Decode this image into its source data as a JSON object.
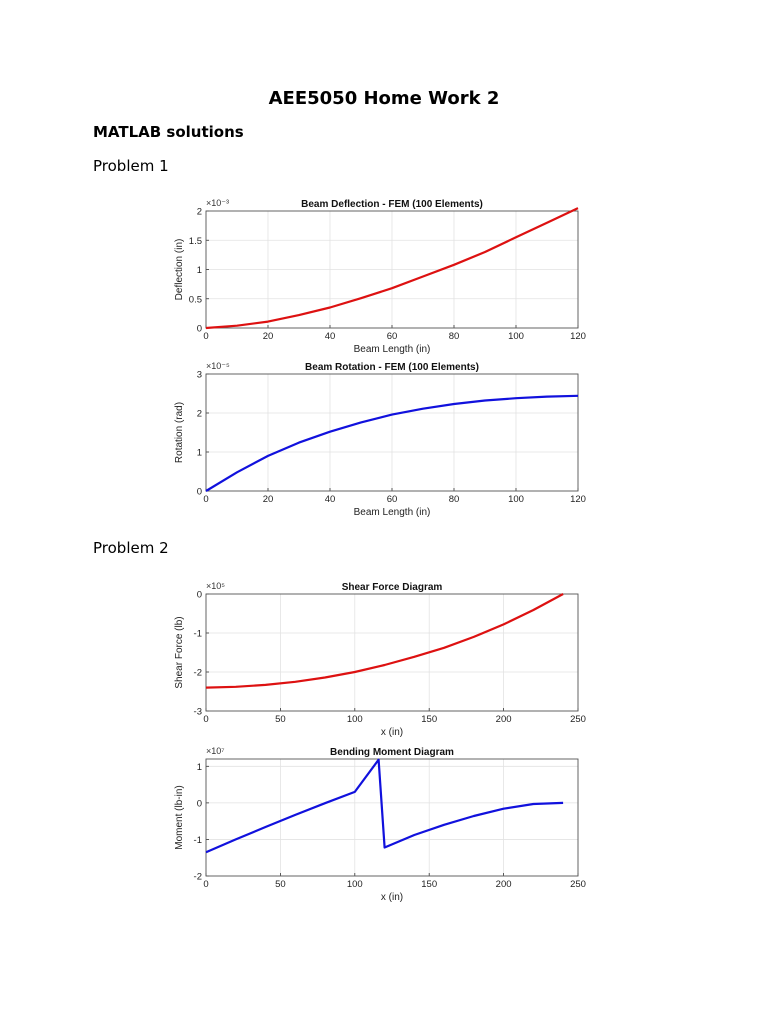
{
  "document": {
    "title": "AEE5050 Home Work 2",
    "subtitle": "MATLAB solutions",
    "sections": [
      "Problem 1",
      "Problem 2"
    ]
  },
  "chart_data": [
    {
      "type": "line",
      "title": "Beam Deflection - FEM (100 Elements)",
      "xlabel": "Beam Length (in)",
      "ylabel": "Deflection (in)",
      "exponent": "×10⁻³",
      "xlim": [
        0,
        120
      ],
      "ylim": [
        0,
        2
      ],
      "xticks": [
        "0",
        "20",
        "40",
        "60",
        "80",
        "100",
        "120"
      ],
      "yticks": [
        "0",
        "0.5",
        "1",
        "1.5",
        "2"
      ],
      "xtick_values": [
        0,
        20,
        40,
        60,
        80,
        100,
        120
      ],
      "ytick_values": [
        0,
        0.5,
        1,
        1.5,
        2
      ],
      "grid": true,
      "color": "#dd1111",
      "series": [
        {
          "x": [
            0,
            10,
            20,
            30,
            40,
            50,
            60,
            70,
            80,
            90,
            100,
            110,
            120
          ],
          "y": [
            0,
            0.04,
            0.11,
            0.22,
            0.35,
            0.51,
            0.68,
            0.88,
            1.08,
            1.3,
            1.55,
            1.8,
            2.05
          ]
        }
      ]
    },
    {
      "type": "line",
      "title": "Beam Rotation - FEM (100 Elements)",
      "xlabel": "Beam Length (in)",
      "ylabel": "Rotation (rad)",
      "exponent": "×10⁻⁵",
      "xlim": [
        0,
        120
      ],
      "ylim": [
        0,
        3
      ],
      "xticks": [
        "0",
        "20",
        "40",
        "60",
        "80",
        "100",
        "120"
      ],
      "yticks": [
        "0",
        "1",
        "2",
        "3"
      ],
      "xtick_values": [
        0,
        20,
        40,
        60,
        80,
        100,
        120
      ],
      "ytick_values": [
        0,
        1,
        2,
        3
      ],
      "grid": true,
      "color": "#1111dd",
      "series": [
        {
          "x": [
            0,
            10,
            20,
            30,
            40,
            50,
            60,
            70,
            80,
            90,
            100,
            110,
            120
          ],
          "y": [
            0,
            0.48,
            0.9,
            1.24,
            1.52,
            1.76,
            1.96,
            2.11,
            2.23,
            2.32,
            2.38,
            2.42,
            2.44
          ]
        }
      ]
    },
    {
      "type": "line",
      "title": "Shear Force Diagram",
      "xlabel": "x (in)",
      "ylabel": "Shear Force (lb)",
      "exponent": "×10⁵",
      "xlim": [
        0,
        250
      ],
      "ylim": [
        -3,
        0
      ],
      "xticks": [
        "0",
        "50",
        "100",
        "150",
        "200",
        "250"
      ],
      "yticks": [
        "-3",
        "-2",
        "-1",
        "0"
      ],
      "xtick_values": [
        0,
        50,
        100,
        150,
        200,
        250
      ],
      "ytick_values": [
        -3,
        -2,
        -1,
        0
      ],
      "grid": true,
      "color": "#dd1111",
      "series": [
        {
          "x": [
            0,
            20,
            40,
            60,
            80,
            100,
            120,
            140,
            160,
            180,
            200,
            220,
            240
          ],
          "y": [
            -2.4,
            -2.38,
            -2.33,
            -2.25,
            -2.14,
            -2.0,
            -1.82,
            -1.61,
            -1.38,
            -1.1,
            -0.78,
            -0.41,
            0
          ]
        }
      ]
    },
    {
      "type": "line",
      "title": "Bending Moment Diagram",
      "xlabel": "x (in)",
      "ylabel": "Moment (lb-in)",
      "exponent": "×10⁷",
      "xlim": [
        0,
        250
      ],
      "ylim": [
        -2,
        1.2
      ],
      "xticks": [
        "0",
        "50",
        "100",
        "150",
        "200",
        "250"
      ],
      "yticks": [
        "-2",
        "-1",
        "0",
        "1"
      ],
      "xtick_values": [
        0,
        50,
        100,
        150,
        200,
        250
      ],
      "ytick_values": [
        -2,
        -1,
        0,
        1
      ],
      "grid": true,
      "color": "#1111dd",
      "series": [
        {
          "x": [
            0,
            20,
            40,
            60,
            80,
            100,
            116,
            120,
            140,
            160,
            180,
            200,
            220,
            240
          ],
          "y": [
            -1.35,
            -1.0,
            -0.66,
            -0.33,
            -0.01,
            0.3,
            1.18,
            -1.22,
            -0.88,
            -0.6,
            -0.36,
            -0.16,
            -0.03,
            0
          ]
        }
      ]
    }
  ]
}
